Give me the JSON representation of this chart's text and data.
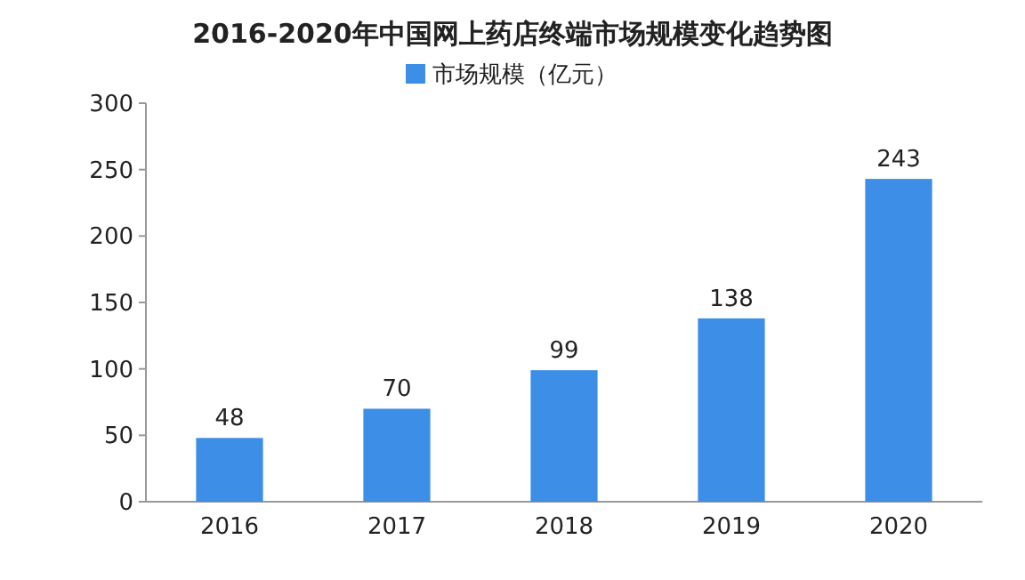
{
  "chart_data": {
    "type": "bar",
    "title": "2016-2020年中国网上药店终端市场规模变化趋势图",
    "categories": [
      "2016",
      "2017",
      "2018",
      "2019",
      "2020"
    ],
    "series": [
      {
        "name": "市场规模（亿元）",
        "color": "#3c8ee6",
        "values": [
          48,
          70,
          99,
          138,
          243
        ]
      }
    ],
    "ylim": [
      0,
      300
    ],
    "yticks": [
      0,
      50,
      100,
      150,
      200,
      250,
      300
    ],
    "data_labels": true,
    "legend": "top",
    "grid": false
  }
}
